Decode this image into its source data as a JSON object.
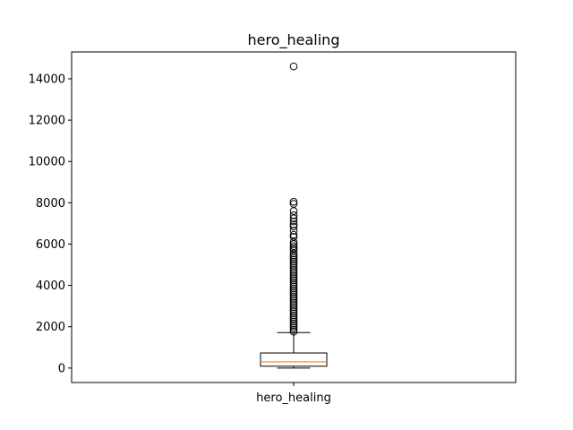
{
  "chart_data": {
    "type": "box",
    "title": "hero_healing",
    "categories": [
      "hero_healing"
    ],
    "xlabel": "",
    "ylabel": "",
    "ylim": [
      -700,
      15300
    ],
    "yticks": [
      0,
      2000,
      4000,
      6000,
      8000,
      10000,
      12000,
      14000
    ],
    "ytick_labels": [
      "0",
      "2000",
      "4000",
      "6000",
      "8000",
      "10000",
      "12000",
      "14000"
    ],
    "grid": false,
    "box": {
      "whisker_low": 0,
      "q1": 90,
      "median": 300,
      "q3": 730,
      "whisker_high": 1720,
      "outliers": [
        14600,
        8050,
        7950,
        7600,
        7400,
        7250,
        7100,
        6950,
        6850,
        6650,
        6450,
        6350,
        6100,
        6000,
        5900,
        5800,
        5700,
        5550,
        5450,
        5350,
        5250,
        5150,
        5050,
        4950,
        4850,
        4750,
        4650,
        4550,
        4450,
        4350,
        4250,
        4150,
        4050,
        3950,
        3850,
        3750,
        3650,
        3550,
        3450,
        3350,
        3250,
        3150,
        3050,
        2950,
        2850,
        2750,
        2650,
        2550,
        2450,
        2350,
        2250,
        2150,
        2050,
        1950,
        1850,
        1760
      ]
    },
    "colors": {
      "box": "#000000",
      "median": "#ff7f0e"
    }
  }
}
